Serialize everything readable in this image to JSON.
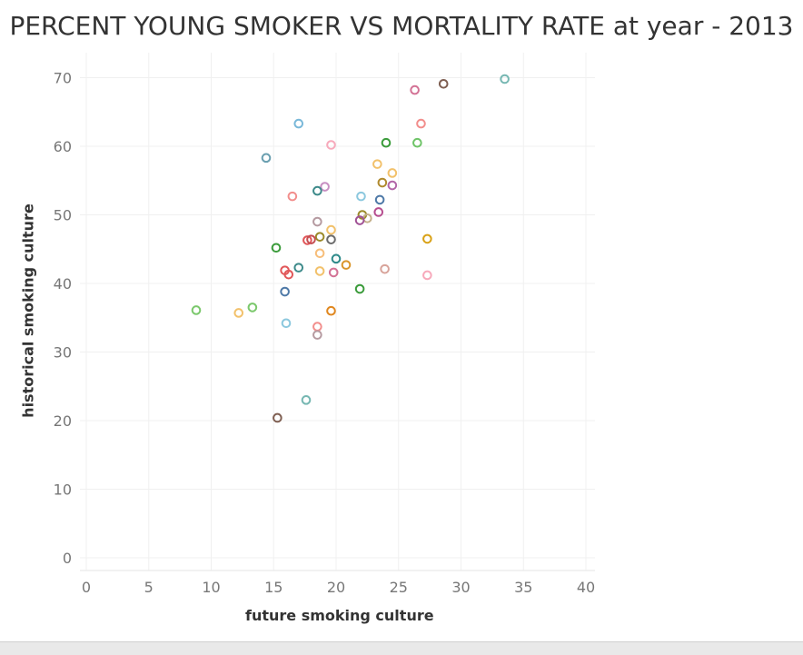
{
  "chart_data": {
    "type": "scatter",
    "title": "PERCENT YOUNG SMOKER VS MORTALITY RATE at year - 2013",
    "xlabel": "future smoking culture",
    "ylabel": "historical smoking culture",
    "xlim": [
      0,
      40
    ],
    "ylim": [
      0,
      70
    ],
    "x_ticks": [
      "0",
      "5",
      "10",
      "15",
      "20",
      "25",
      "30",
      "35",
      "40"
    ],
    "y_ticks": [
      "0",
      "10",
      "20",
      "30",
      "40",
      "50",
      "60",
      "70"
    ],
    "grid": true,
    "marker": "hollow-circle",
    "points": [
      {
        "x": 33.5,
        "y": 69.8,
        "color": "#76b7b2"
      },
      {
        "x": 28.6,
        "y": 69.1,
        "color": "#7f5f52"
      },
      {
        "x": 26.3,
        "y": 68.2,
        "color": "#d37295"
      },
      {
        "x": 17.0,
        "y": 63.3,
        "color": "#79b8d9"
      },
      {
        "x": 26.8,
        "y": 63.3,
        "color": "#f28e8c"
      },
      {
        "x": 19.6,
        "y": 60.2,
        "color": "#f7a9bb"
      },
      {
        "x": 24.0,
        "y": 60.5,
        "color": "#3a9b3a"
      },
      {
        "x": 26.5,
        "y": 60.5,
        "color": "#6fc468"
      },
      {
        "x": 14.4,
        "y": 58.3,
        "color": "#6a9fb0"
      },
      {
        "x": 23.3,
        "y": 57.4,
        "color": "#f2c16b"
      },
      {
        "x": 24.5,
        "y": 56.1,
        "color": "#f2c16b"
      },
      {
        "x": 23.7,
        "y": 54.7,
        "color": "#b08a2e"
      },
      {
        "x": 24.5,
        "y": 54.3,
        "color": "#b267a8"
      },
      {
        "x": 19.1,
        "y": 54.1,
        "color": "#c78fc2"
      },
      {
        "x": 18.5,
        "y": 53.5,
        "color": "#3d8a8a"
      },
      {
        "x": 16.5,
        "y": 52.7,
        "color": "#f28e8c"
      },
      {
        "x": 22.0,
        "y": 52.7,
        "color": "#8cc8de"
      },
      {
        "x": 23.5,
        "y": 52.2,
        "color": "#4e79a7"
      },
      {
        "x": 23.4,
        "y": 50.4,
        "color": "#b64d8f"
      },
      {
        "x": 22.1,
        "y": 50.0,
        "color": "#9b8a2a"
      },
      {
        "x": 22.5,
        "y": 49.5,
        "color": "#c4b08a"
      },
      {
        "x": 21.9,
        "y": 49.2,
        "color": "#a05195"
      },
      {
        "x": 18.5,
        "y": 49.0,
        "color": "#b59aa0"
      },
      {
        "x": 19.6,
        "y": 47.8,
        "color": "#f2c16b"
      },
      {
        "x": 18.7,
        "y": 46.8,
        "color": "#9b8a2a"
      },
      {
        "x": 19.6,
        "y": 46.4,
        "color": "#6b6b6b"
      },
      {
        "x": 17.7,
        "y": 46.3,
        "color": "#e15759"
      },
      {
        "x": 18.0,
        "y": 46.4,
        "color": "#c44e52"
      },
      {
        "x": 27.3,
        "y": 46.5,
        "color": "#d9a218"
      },
      {
        "x": 15.2,
        "y": 45.2,
        "color": "#3a9b3a"
      },
      {
        "x": 18.7,
        "y": 44.4,
        "color": "#f7be7a"
      },
      {
        "x": 20.0,
        "y": 43.6,
        "color": "#2e8a8a"
      },
      {
        "x": 20.8,
        "y": 42.7,
        "color": "#d9952a"
      },
      {
        "x": 17.0,
        "y": 42.3,
        "color": "#3d8a8a"
      },
      {
        "x": 23.9,
        "y": 42.1,
        "color": "#d8a39a"
      },
      {
        "x": 15.9,
        "y": 41.9,
        "color": "#e15759"
      },
      {
        "x": 18.7,
        "y": 41.8,
        "color": "#f2c16b"
      },
      {
        "x": 19.8,
        "y": 41.6,
        "color": "#d37295"
      },
      {
        "x": 16.2,
        "y": 41.3,
        "color": "#e15759"
      },
      {
        "x": 27.3,
        "y": 41.2,
        "color": "#f7a9bb"
      },
      {
        "x": 21.9,
        "y": 39.2,
        "color": "#3a9b3a"
      },
      {
        "x": 15.9,
        "y": 38.8,
        "color": "#4e79a7"
      },
      {
        "x": 8.8,
        "y": 36.1,
        "color": "#7bc86c"
      },
      {
        "x": 13.3,
        "y": 36.5,
        "color": "#7bc86c"
      },
      {
        "x": 12.2,
        "y": 35.7,
        "color": "#f2c16b"
      },
      {
        "x": 19.6,
        "y": 36.0,
        "color": "#e0871f"
      },
      {
        "x": 16.0,
        "y": 34.2,
        "color": "#8cc8de"
      },
      {
        "x": 18.5,
        "y": 33.7,
        "color": "#f28e8c"
      },
      {
        "x": 18.5,
        "y": 32.5,
        "color": "#b59aa0"
      },
      {
        "x": 17.6,
        "y": 23.0,
        "color": "#76b7b2"
      },
      {
        "x": 15.3,
        "y": 20.4,
        "color": "#7f5f52"
      }
    ]
  }
}
